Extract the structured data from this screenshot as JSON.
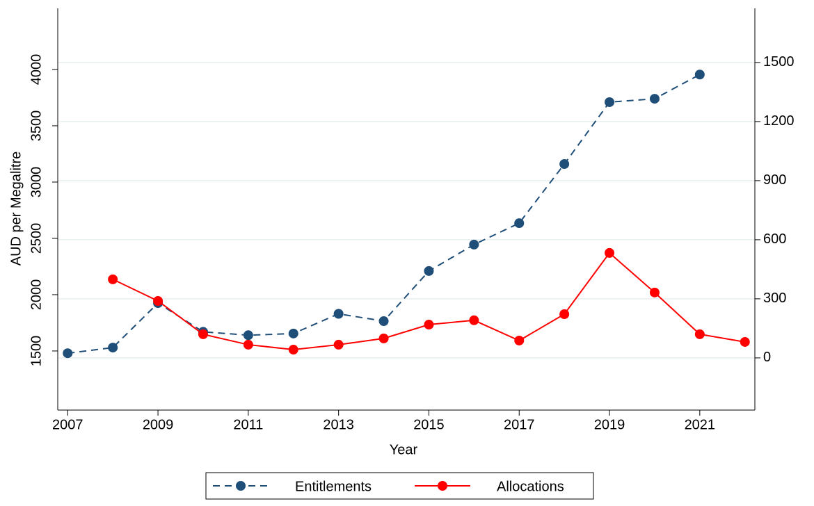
{
  "chart_data": {
    "type": "line",
    "x_label": "Year",
    "y_label": "AUD per Megalitre",
    "x": [
      2007,
      2008,
      2009,
      2010,
      2011,
      2012,
      2013,
      2014,
      2015,
      2016,
      2017,
      2018,
      2019,
      2020,
      2021,
      2022
    ],
    "xlim": [
      2006.78,
      2022.22
    ],
    "xticks": [
      2007,
      2009,
      2011,
      2013,
      2015,
      2017,
      2019,
      2021
    ],
    "ylim": [
      975,
      4543
    ],
    "yticks": [
      1500,
      2000,
      2500,
      3000,
      3500,
      4000
    ],
    "y2lim": [
      -265,
      1775
    ],
    "y2ticks": [
      0,
      300,
      600,
      900,
      1200,
      1500
    ],
    "grid": true,
    "series": [
      {
        "name": "Entitlements",
        "color": "#1f4e79",
        "dashed": true,
        "values": [
          1480,
          1530,
          1925,
          1670,
          1640,
          1655,
          1830,
          1765,
          2210,
          2445,
          2635,
          3160,
          3710,
          3740,
          3955,
          null
        ]
      },
      {
        "name": "Allocations",
        "color": "#ff0000",
        "dashed": false,
        "axis": "y2",
        "values": [
          null,
          399,
          289,
          120,
          67,
          42,
          67,
          99,
          169,
          191,
          88,
          222,
          533,
          332,
          120,
          81
        ]
      }
    ]
  }
}
